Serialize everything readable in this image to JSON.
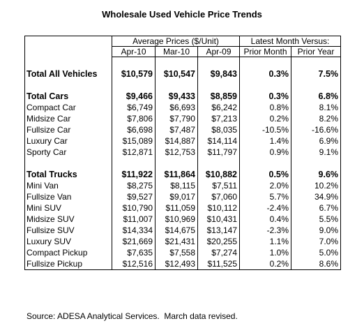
{
  "title": "Wholesale Used Vehicle Price Trends",
  "table": {
    "group_headers": [
      "Average Prices ($/Unit)",
      "Latest Month Versus:"
    ],
    "columns": [
      "Apr-10",
      "Mar-10",
      "Apr-09",
      "Prior Month",
      "Prior Year"
    ],
    "sections": [
      {
        "total": [
          "Total All Vehicles",
          "$10,579",
          "$10,547",
          "$9,843",
          "0.3%",
          "7.5%"
        ],
        "rows": []
      },
      {
        "total": [
          "Total Cars",
          "$9,466",
          "$9,433",
          "$8,859",
          "0.3%",
          "6.8%"
        ],
        "rows": [
          [
            "Compact Car",
            "$6,749",
            "$6,693",
            "$6,242",
            "0.8%",
            "8.1%"
          ],
          [
            "Midsize Car",
            "$7,806",
            "$7,790",
            "$7,213",
            "0.2%",
            "8.2%"
          ],
          [
            "Fullsize Car",
            "$6,698",
            "$7,487",
            "$8,035",
            "-10.5%",
            "-16.6%"
          ],
          [
            "Luxury Car",
            "$15,089",
            "$14,887",
            "$14,114",
            "1.4%",
            "6.9%"
          ],
          [
            "Sporty Car",
            "$12,871",
            "$12,753",
            "$11,797",
            "0.9%",
            "9.1%"
          ]
        ]
      },
      {
        "total": [
          "Total Trucks",
          "$11,922",
          "$11,864",
          "$10,882",
          "0.5%",
          "9.6%"
        ],
        "rows": [
          [
            "Mini Van",
            "$8,275",
            "$8,115",
            "$7,511",
            "2.0%",
            "10.2%"
          ],
          [
            "Fullsize Van",
            "$9,527",
            "$9,017",
            "$7,060",
            "5.7%",
            "34.9%"
          ],
          [
            "Mini SUV",
            "$10,790",
            "$11,059",
            "$10,112",
            "-2.4%",
            "6.7%"
          ],
          [
            "Midsize SUV",
            "$11,007",
            "$10,969",
            "$10,431",
            "0.4%",
            "5.5%"
          ],
          [
            "Fullsize SUV",
            "$14,334",
            "$14,675",
            "$13,147",
            "-2.3%",
            "9.0%"
          ],
          [
            "Luxury SUV",
            "$21,669",
            "$21,431",
            "$20,255",
            "1.1%",
            "7.0%"
          ],
          [
            "Compact Pickup",
            "$7,635",
            "$7,558",
            "$7,274",
            "1.0%",
            "5.0%"
          ],
          [
            "Fullsize Pickup",
            "$12,516",
            "$12,493",
            "$11,525",
            "0.2%",
            "8.6%"
          ]
        ]
      }
    ]
  },
  "footer": "Source: ADESA Analytical Services.  March data revised."
}
